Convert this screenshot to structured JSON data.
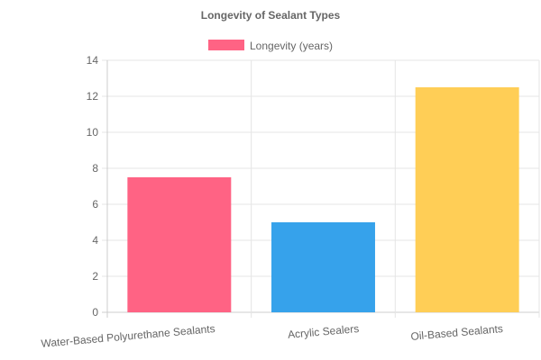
{
  "chart_data": {
    "type": "bar",
    "title": "Longevity of Sealant Types",
    "categories": [
      "Water-Based Polyurethane Sealants",
      "Acrylic Sealers",
      "Oil-Based Sealants"
    ],
    "series": [
      {
        "name": "Longevity (years)",
        "values": [
          7.5,
          5,
          12.5
        ],
        "colors": [
          "#ff6384",
          "#36a2eb",
          "#ffce56"
        ]
      }
    ],
    "yticks": [
      "0",
      "2",
      "4",
      "6",
      "8",
      "10",
      "12",
      "14"
    ],
    "ylim": [
      0,
      14
    ],
    "grid": true,
    "legend_position": "top"
  }
}
